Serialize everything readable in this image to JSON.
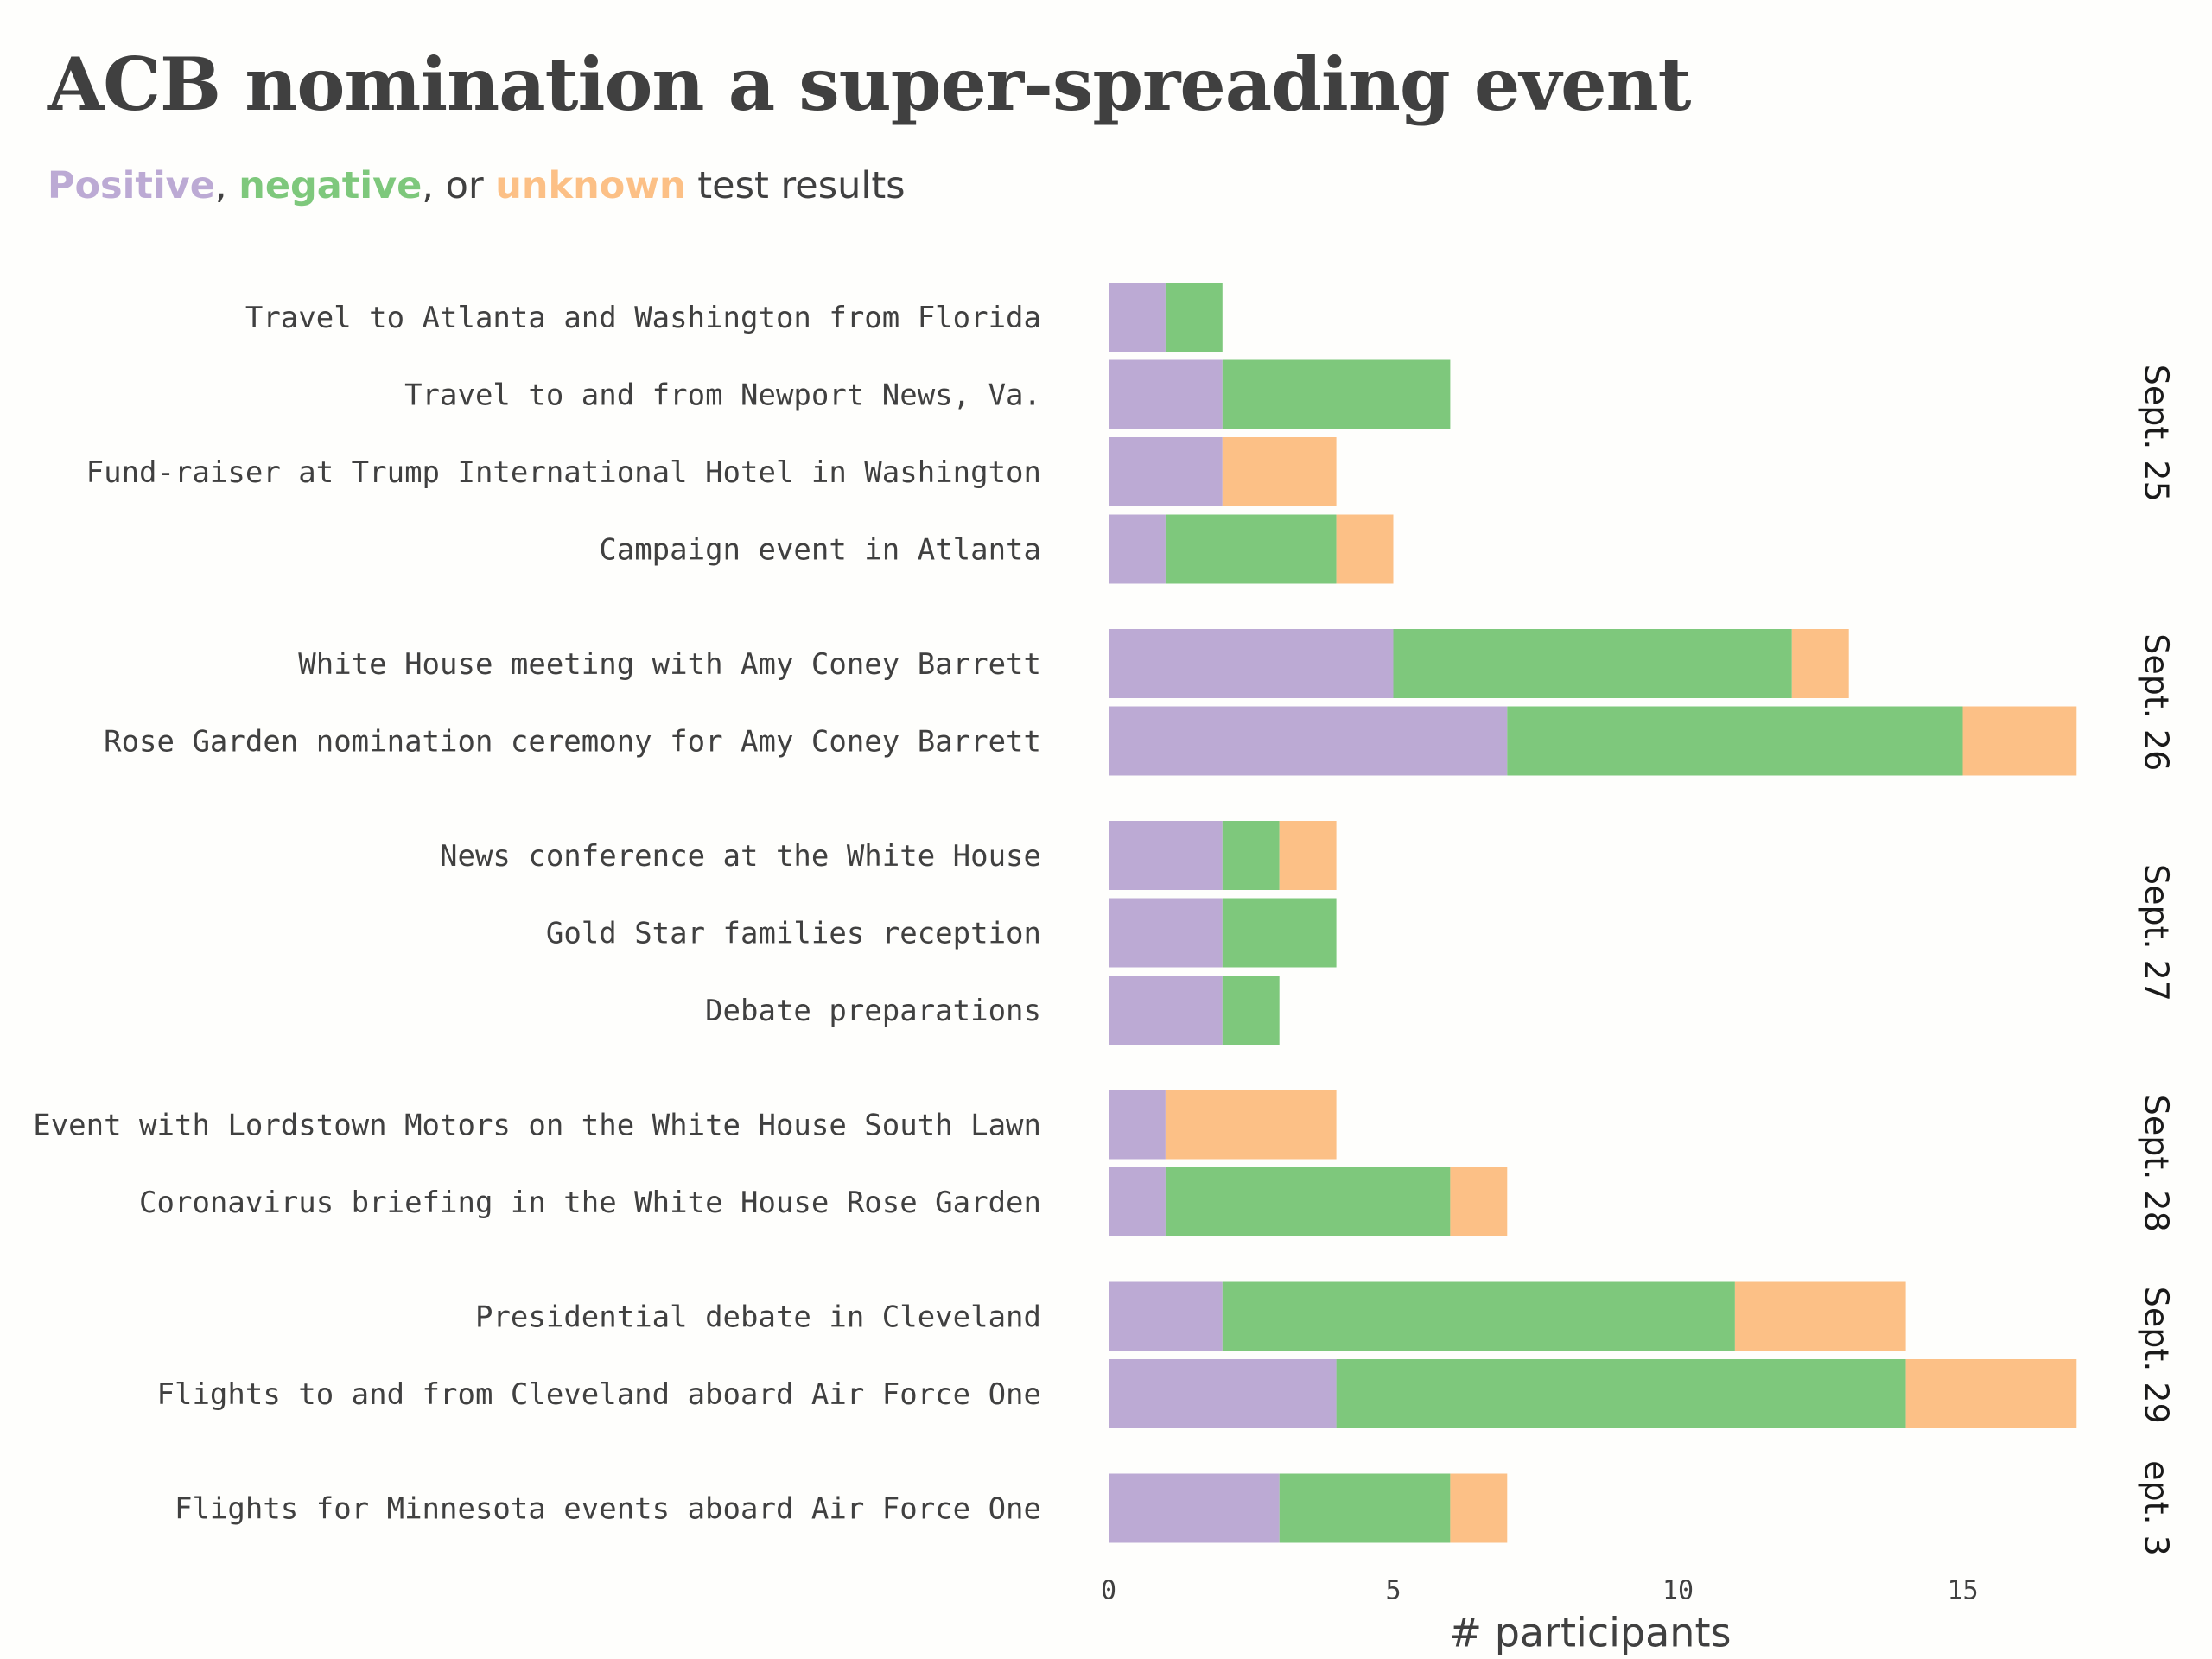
{
  "header": {
    "title": "ACB nomination a super-spreading event",
    "subtitle": {
      "positive": "Positive",
      "sep1": ", ",
      "negative": "negative",
      "sep2": ", or ",
      "unknown": "unknown",
      "rest": " test results"
    }
  },
  "colors": {
    "positive": "#bcaad4",
    "negative": "#7ec87c",
    "unknown": "#fcc086"
  },
  "chart_data": {
    "type": "bar",
    "orientation": "horizontal",
    "stacked": true,
    "title": "ACB nomination a super-spreading event",
    "xlabel": "# participants",
    "ylabel": "",
    "xlim": [
      0,
      17
    ],
    "xticks": [
      0,
      5,
      10,
      15
    ],
    "grid": false,
    "legend": "in subtitle",
    "series": [
      {
        "name": "Positive",
        "color": "#bcaad4"
      },
      {
        "name": "negative",
        "color": "#7ec87c"
      },
      {
        "name": "unknown",
        "color": "#fcc086"
      }
    ],
    "facets": [
      {
        "label": "Sept. 25",
        "rows": [
          {
            "category": "Travel to Atlanta and Washington from Florida",
            "positive": 1,
            "negative": 1,
            "unknown": 0
          },
          {
            "category": "Travel to and from Newport News, Va.",
            "positive": 2,
            "negative": 4,
            "unknown": 0
          },
          {
            "category": "Fund-raiser at Trump International Hotel in Washington",
            "positive": 2,
            "negative": 0,
            "unknown": 2
          },
          {
            "category": "Campaign event in Atlanta",
            "positive": 1,
            "negative": 3,
            "unknown": 1
          }
        ]
      },
      {
        "label": "Sept. 26",
        "rows": [
          {
            "category": "White House meeting with Amy Coney Barrett",
            "positive": 5,
            "negative": 7,
            "unknown": 1
          },
          {
            "category": "Rose Garden nomination ceremony for Amy Coney Barrett",
            "positive": 7,
            "negative": 8,
            "unknown": 2
          }
        ]
      },
      {
        "label": "Sept. 27",
        "rows": [
          {
            "category": "News conference at the White House",
            "positive": 2,
            "negative": 1,
            "unknown": 1
          },
          {
            "category": "Gold Star families reception",
            "positive": 2,
            "negative": 2,
            "unknown": 0
          },
          {
            "category": "Debate preparations",
            "positive": 2,
            "negative": 1,
            "unknown": 0
          }
        ]
      },
      {
        "label": "Sept. 28",
        "rows": [
          {
            "category": "Event with Lordstown Motors on the White House South Lawn",
            "positive": 1,
            "negative": 0,
            "unknown": 3
          },
          {
            "category": "Coronavirus briefing in the White House Rose Garden",
            "positive": 1,
            "negative": 5,
            "unknown": 1
          }
        ]
      },
      {
        "label": "Sept. 29",
        "rows": [
          {
            "category": "Presidential debate in Cleveland",
            "positive": 2,
            "negative": 9,
            "unknown": 3
          },
          {
            "category": "Flights to and from Cleveland aboard Air Force One",
            "positive": 4,
            "negative": 10,
            "unknown": 3
          }
        ]
      },
      {
        "label": "ept. 3",
        "rows": [
          {
            "category": "Flights for Minnesota events aboard Air Force One",
            "positive": 3,
            "negative": 3,
            "unknown": 1
          }
        ]
      }
    ]
  }
}
